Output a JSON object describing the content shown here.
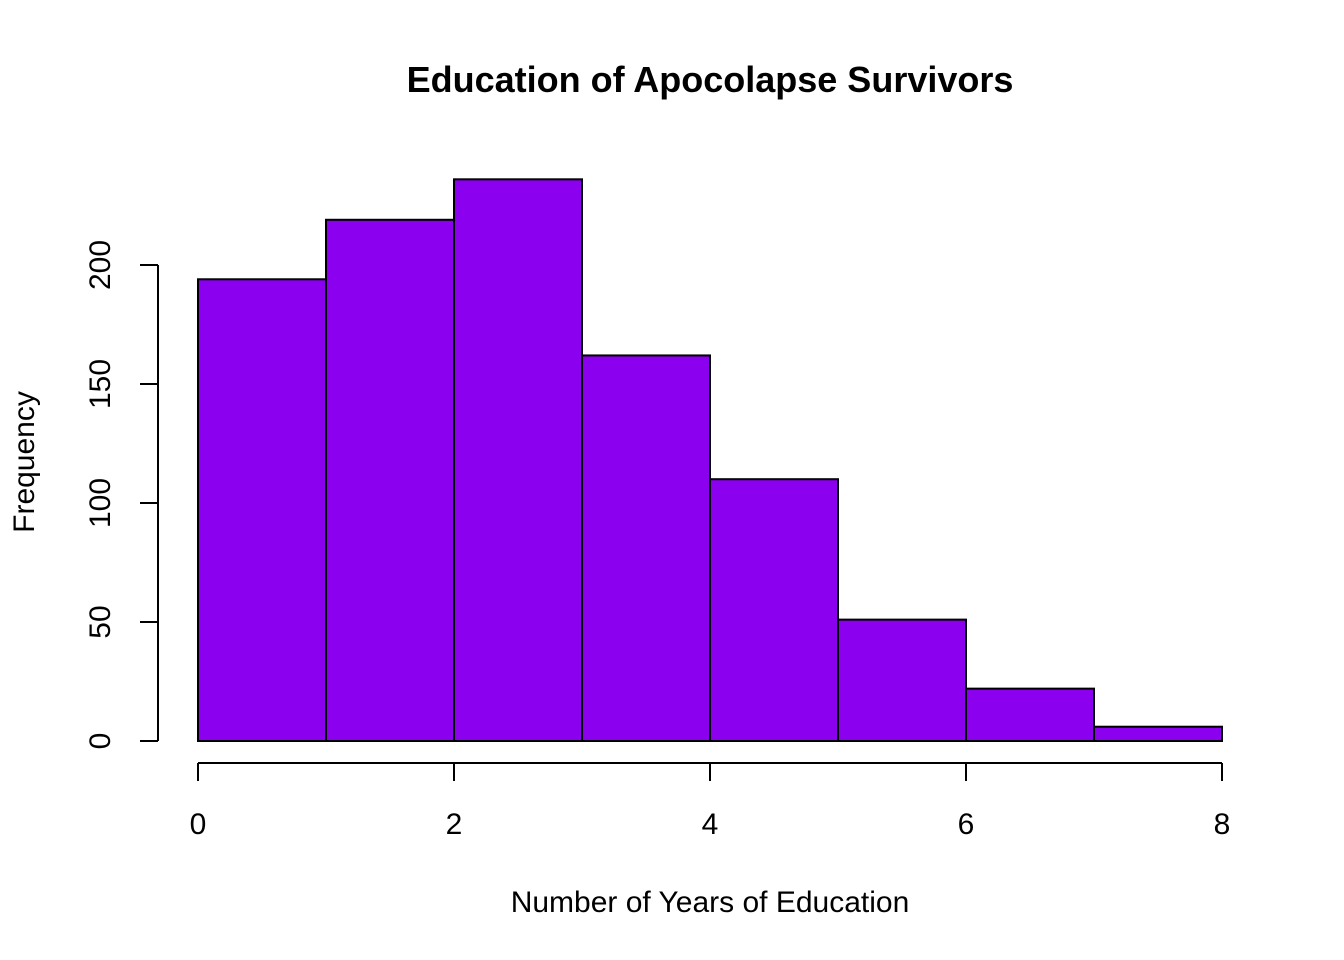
{
  "chart_data": {
    "type": "bar",
    "subtype": "histogram",
    "title": "Education of Apocolapse Survivors",
    "xlabel": "Number of Years of Education",
    "ylabel": "Frequency",
    "bins": [
      [
        0,
        1
      ],
      [
        1,
        2
      ],
      [
        2,
        3
      ],
      [
        3,
        4
      ],
      [
        4,
        5
      ],
      [
        5,
        6
      ],
      [
        6,
        7
      ],
      [
        7,
        8
      ]
    ],
    "values": [
      194,
      219,
      236,
      162,
      110,
      51,
      22,
      6
    ],
    "xlim": [
      0,
      8
    ],
    "ylim": [
      0,
      236
    ],
    "x_ticks": [
      {
        "value": 0,
        "label": "0"
      },
      {
        "value": 2,
        "label": "2"
      },
      {
        "value": 4,
        "label": "4"
      },
      {
        "value": 6,
        "label": "6"
      },
      {
        "value": 8,
        "label": "8"
      }
    ],
    "y_ticks": [
      {
        "value": 0,
        "label": "0"
      },
      {
        "value": 50,
        "label": "50"
      },
      {
        "value": 100,
        "label": "100"
      },
      {
        "value": 150,
        "label": "150"
      },
      {
        "value": 200,
        "label": "200"
      }
    ],
    "bar_color": "#8B00EE",
    "grid": false,
    "legend": "none"
  }
}
